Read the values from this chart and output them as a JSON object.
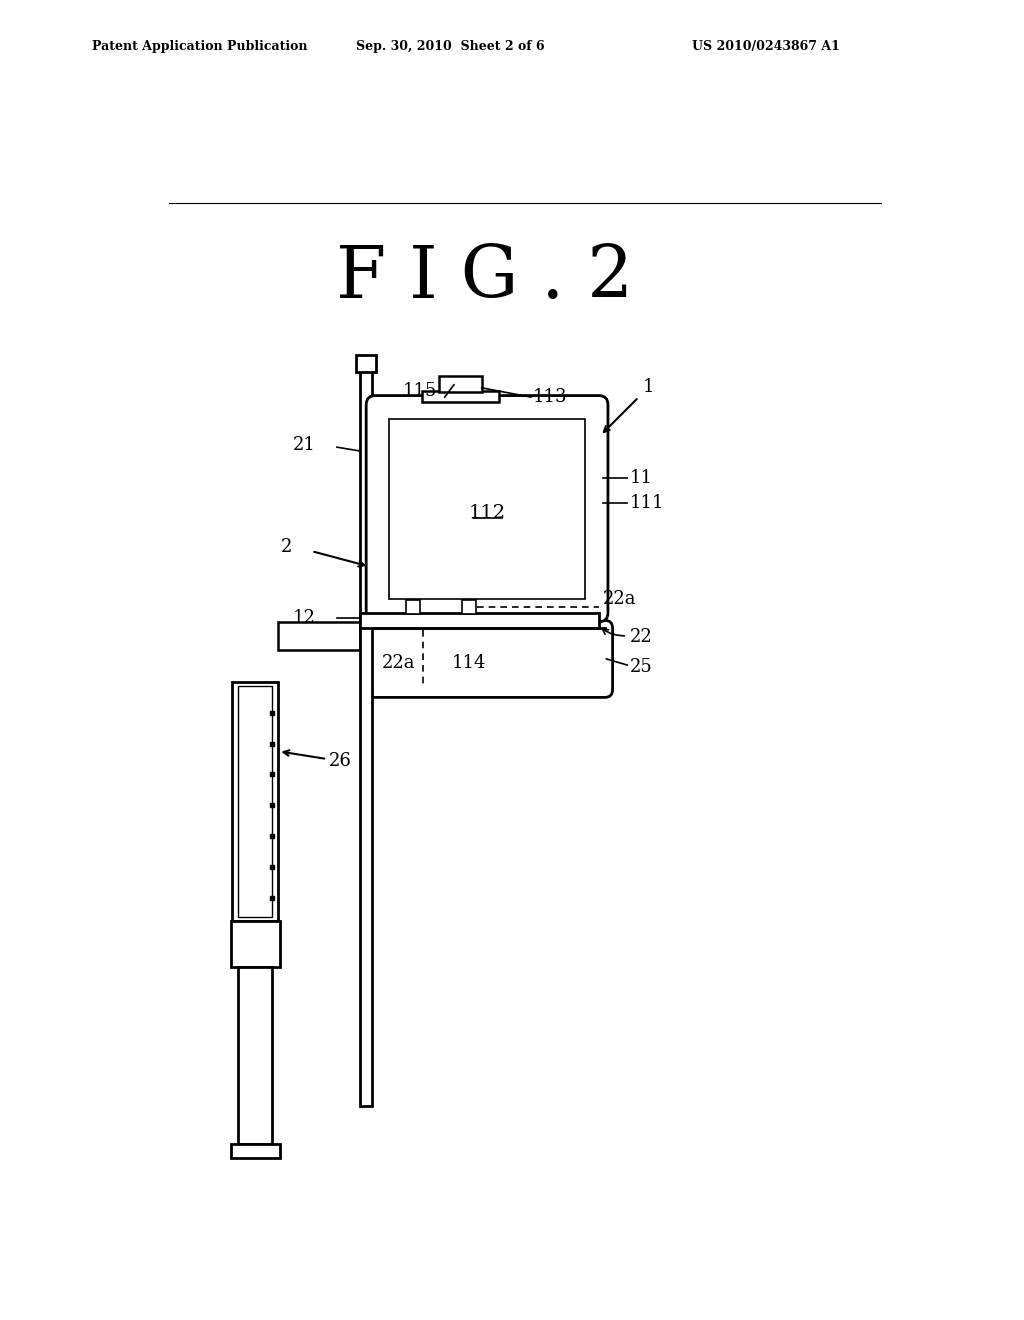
{
  "bg_color": "#ffffff",
  "title": "F I G . 2",
  "header_left": "Patent Application Publication",
  "header_center": "Sep. 30, 2010  Sheet 2 of 6",
  "header_right": "US 2010/0243867 A1"
}
